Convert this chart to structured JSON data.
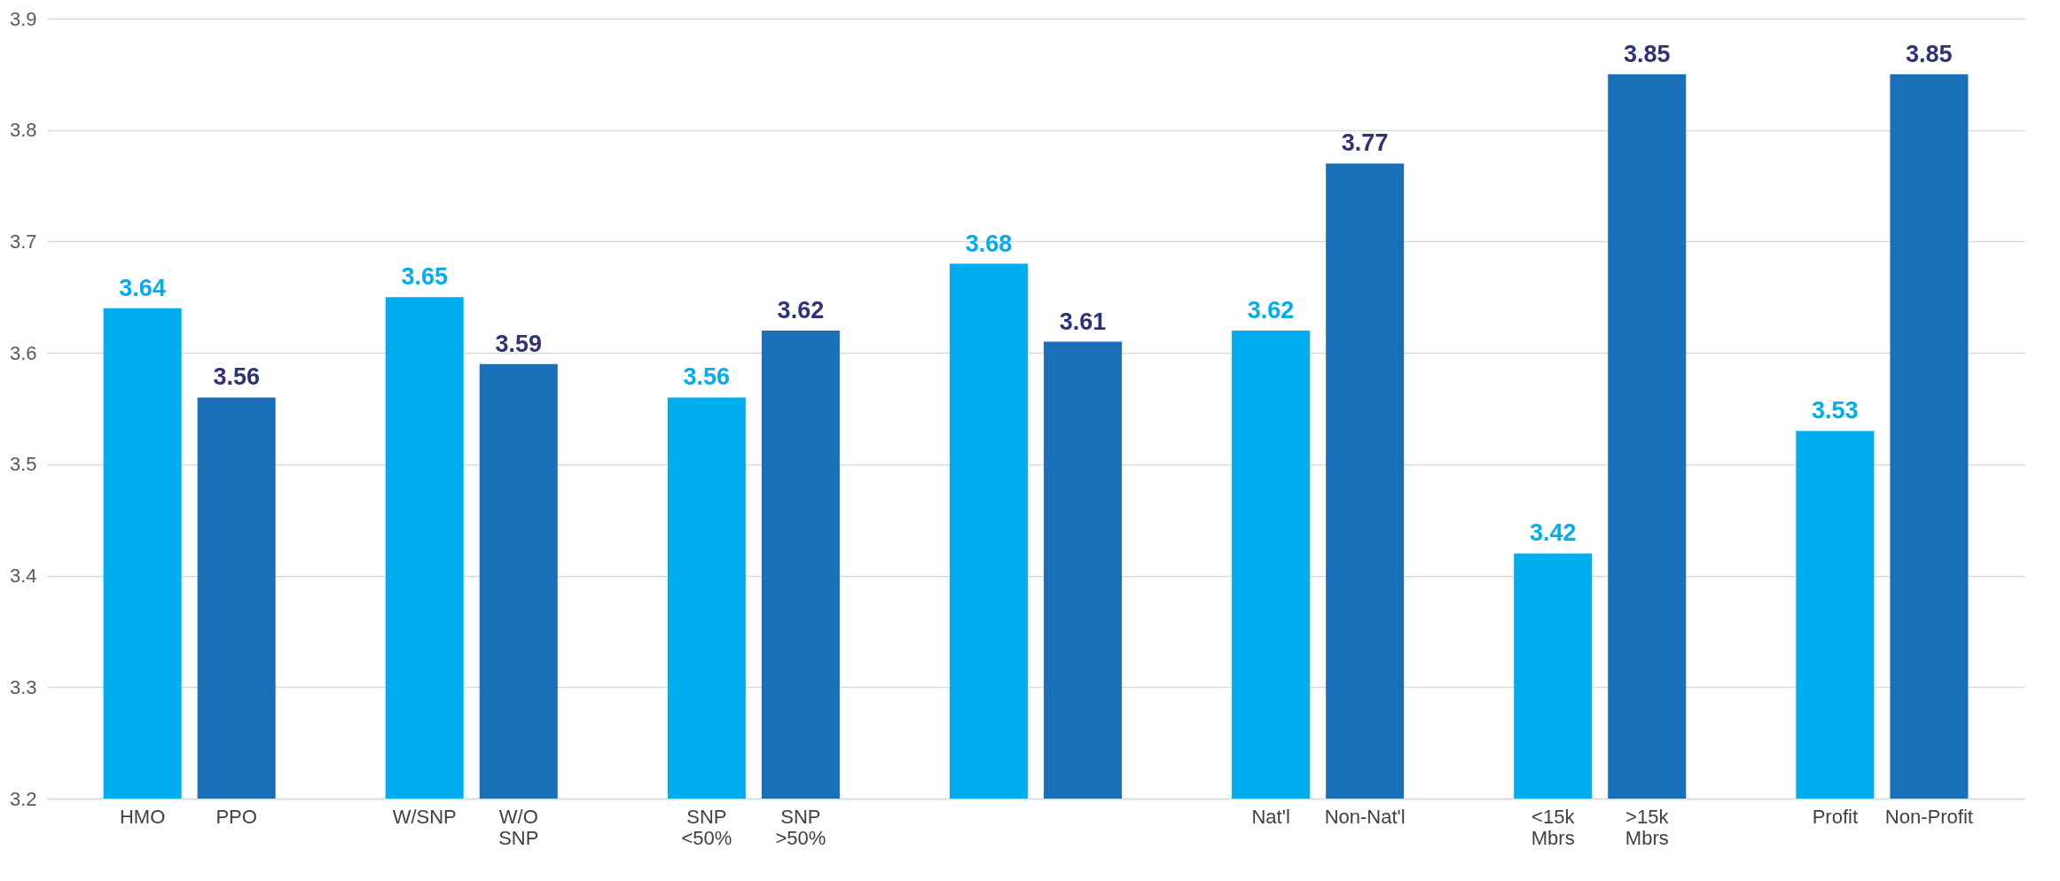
{
  "chart_data": {
    "type": "bar",
    "categories": [
      "HMO",
      "PPO",
      "W/SNP",
      "W/O SNP",
      "SNP <50%",
      "SNP >50%",
      null,
      null,
      "Nat'l",
      "Non-Nat'l",
      "<15k Mbrs",
      ">15k Mbrs",
      "Profit",
      "Non-Profit"
    ],
    "values": [
      3.64,
      3.56,
      3.65,
      3.59,
      3.56,
      3.62,
      3.68,
      3.61,
      3.62,
      3.77,
      3.42,
      3.85,
      3.53,
      3.85
    ],
    "colors": [
      "#00adef",
      "#1a70b8",
      "#00adef",
      "#1a70b8",
      "#00adef",
      "#1a70b8",
      "#00adef",
      "#1a70b8",
      "#00adef",
      "#1a70b8",
      "#00adef",
      "#1a70b8",
      "#00adef",
      "#1a70b8"
    ],
    "ylim": [
      3.2,
      3.9
    ],
    "yticks": [
      3.2,
      3.3,
      3.4,
      3.5,
      3.6,
      3.7,
      3.8,
      3.9
    ],
    "grid": "y",
    "data_labels": true
  }
}
